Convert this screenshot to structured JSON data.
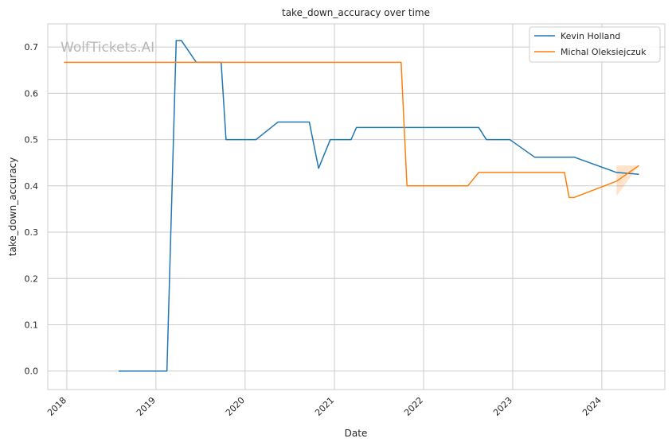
{
  "chart_data": {
    "type": "line",
    "title": "take_down_accuracy over time",
    "xlabel": "Date",
    "ylabel": "take_down_accuracy",
    "watermark": "WolfTickets.AI",
    "xlim": [
      "2017-10-15",
      "2024-09-15"
    ],
    "ylim": [
      -0.04,
      0.75
    ],
    "x_ticks": [
      "2018",
      "2019",
      "2020",
      "2021",
      "2022",
      "2023",
      "2024"
    ],
    "y_ticks": [
      "0.0",
      "0.1",
      "0.2",
      "0.3",
      "0.4",
      "0.5",
      "0.6",
      "0.7"
    ],
    "grid": true,
    "legend_position": "top-right",
    "series": [
      {
        "name": "Kevin Holland",
        "color": "#1f77b4",
        "points": [
          [
            "2018-08-01",
            0.0
          ],
          [
            "2019-02-15",
            0.0
          ],
          [
            "2019-03-25",
            0.714
          ],
          [
            "2019-04-15",
            0.714
          ],
          [
            "2019-06-15",
            0.667
          ],
          [
            "2019-09-25",
            0.667
          ],
          [
            "2019-10-15",
            0.5
          ],
          [
            "2020-02-15",
            0.5
          ],
          [
            "2020-05-15",
            0.538
          ],
          [
            "2020-09-20",
            0.538
          ],
          [
            "2020-10-28",
            0.438
          ],
          [
            "2020-12-15",
            0.5
          ],
          [
            "2021-03-10",
            0.5
          ],
          [
            "2021-04-01",
            0.526
          ],
          [
            "2022-08-15",
            0.526
          ],
          [
            "2022-09-15",
            0.5
          ],
          [
            "2022-12-20",
            0.5
          ],
          [
            "2023-04-01",
            0.462
          ],
          [
            "2023-09-10",
            0.462
          ],
          [
            "2024-03-01",
            0.429
          ],
          [
            "2024-06-01",
            0.425
          ]
        ]
      },
      {
        "name": "Michal Oleksiejczuk",
        "color": "#ff7f0e",
        "points": [
          [
            "2017-12-20",
            0.667
          ],
          [
            "2021-10-01",
            0.667
          ],
          [
            "2021-10-25",
            0.4
          ],
          [
            "2022-07-01",
            0.4
          ],
          [
            "2022-08-15",
            0.429
          ],
          [
            "2023-08-01",
            0.429
          ],
          [
            "2023-08-20",
            0.375
          ],
          [
            "2023-09-10",
            0.375
          ],
          [
            "2024-03-01",
            0.41
          ],
          [
            "2024-06-01",
            0.444
          ]
        ],
        "band": [
          [
            "2024-03-01",
            0.378,
            0.444
          ],
          [
            "2024-06-01",
            0.444,
            0.444
          ]
        ]
      }
    ]
  }
}
